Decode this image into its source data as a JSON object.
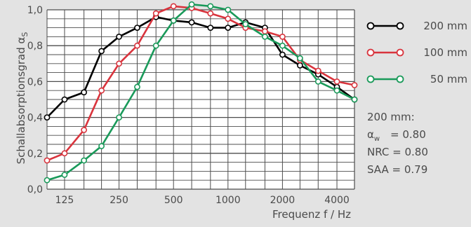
{
  "chart_data": {
    "type": "line",
    "xlabel": "Frequenz f / Hz",
    "ylabel": "Schallabsorptionsgrad α",
    "ylabel_subscript": "S",
    "x_scale": "log",
    "xlim": [
      100,
      5000
    ],
    "ylim": [
      0,
      1.0
    ],
    "grid": true,
    "y_ticks": [
      "0,0",
      "0,2",
      "0,4",
      "0,6",
      "0,8",
      "1,0"
    ],
    "x_ticks": [
      "125",
      "250",
      "500",
      "1000",
      "2000",
      "4000"
    ],
    "x": [
      100,
      125,
      160,
      200,
      250,
      315,
      400,
      500,
      630,
      800,
      1000,
      1250,
      1600,
      2000,
      2500,
      3150,
      4000,
      5000
    ],
    "series": [
      {
        "name": "200 mm",
        "color": "#000000",
        "values": [
          0.4,
          0.5,
          0.54,
          0.77,
          0.85,
          0.9,
          0.96,
          0.94,
          0.93,
          0.9,
          0.9,
          0.93,
          0.9,
          0.75,
          0.69,
          0.64,
          0.57,
          0.5
        ]
      },
      {
        "name": "100 mm",
        "color": "#d9343d",
        "values": [
          0.16,
          0.2,
          0.33,
          0.55,
          0.7,
          0.8,
          0.98,
          1.02,
          1.01,
          0.98,
          0.95,
          0.9,
          0.88,
          0.85,
          0.72,
          0.66,
          0.6,
          0.58
        ]
      },
      {
        "name": "50 mm",
        "color": "#1a9a5a",
        "values": [
          0.05,
          0.08,
          0.16,
          0.24,
          0.4,
          0.57,
          0.8,
          0.94,
          1.03,
          1.02,
          1.0,
          0.92,
          0.85,
          0.8,
          0.73,
          0.6,
          0.55,
          0.5
        ]
      }
    ],
    "legend_position": "right",
    "metrics": {
      "heading": "200 mm:",
      "alpha_label": "α",
      "alpha_subscript": "w",
      "alpha_value": "= 0.80",
      "nrc": "NRC = 0.80",
      "saa": "SAA = 0.79"
    }
  }
}
